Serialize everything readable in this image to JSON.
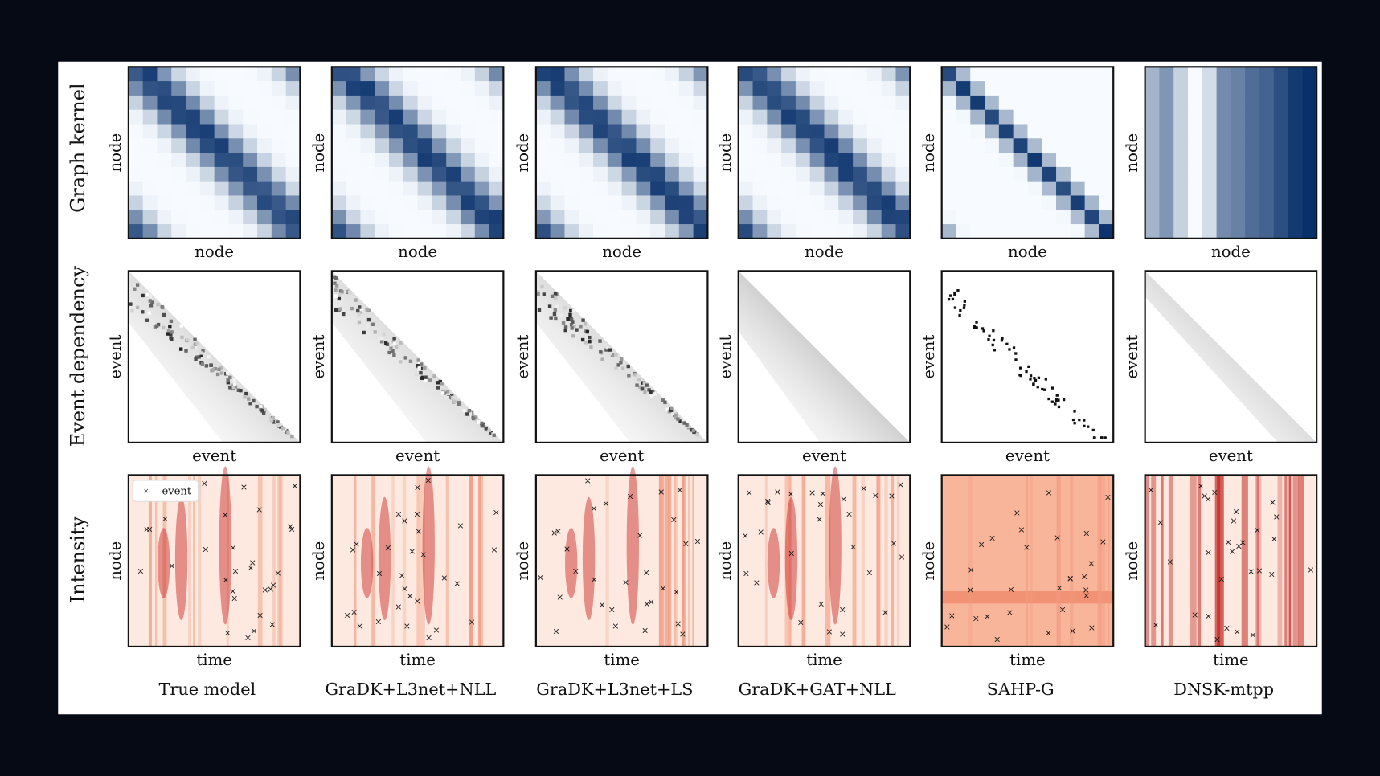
{
  "row_labels": [
    "Graph kernel",
    "Event dependency",
    "Intensity"
  ],
  "rows": [
    {
      "ylabel": "node",
      "xlabel": "node"
    },
    {
      "ylabel": "event",
      "xlabel": "event"
    },
    {
      "ylabel": "node",
      "xlabel": "time"
    }
  ],
  "legend": "event",
  "columns": [
    "True model",
    "GraDK+L3net+NLL",
    "GraDK+L3net+LS",
    "GraDK+GAT+NLL",
    "SAHP-G",
    "DNSK-mtpp"
  ]
}
